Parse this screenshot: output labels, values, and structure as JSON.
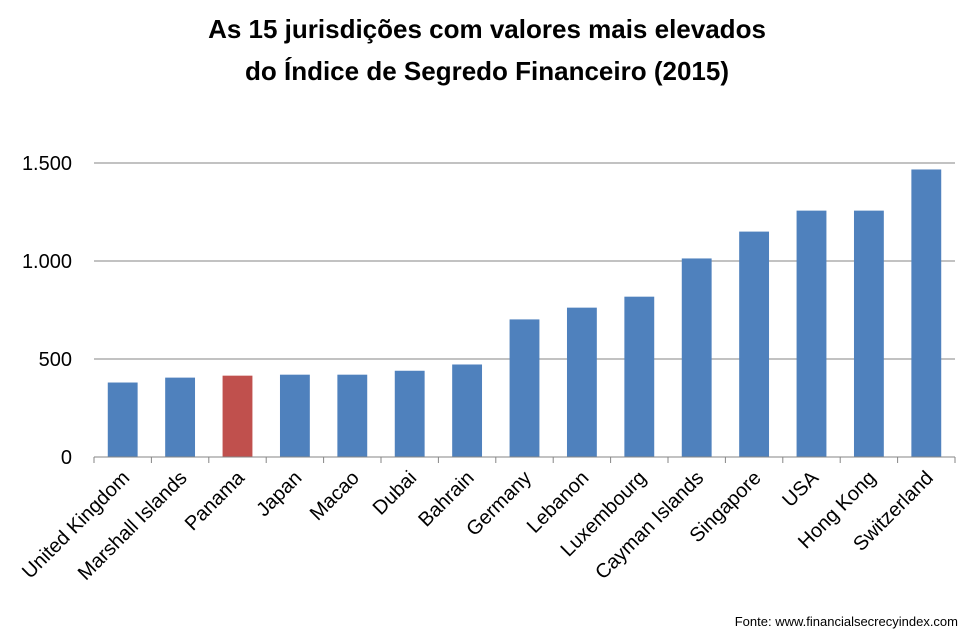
{
  "chart_data": {
    "type": "bar",
    "title_lines": [
      "As 15 jurisdições com valores mais elevados",
      "do Índice de Segredo Financeiro (2015)"
    ],
    "categories": [
      "United Kingdom",
      "Marshall Islands",
      "Panama",
      "Japan",
      "Macao",
      "Dubai",
      "Bahrain",
      "Germany",
      "Lebanon",
      "Luxembourg",
      "Cayman Islands",
      "Singapore",
      "USA",
      "Hong Kong",
      "Switzerland"
    ],
    "values": [
      380,
      405,
      415,
      420,
      420,
      440,
      472,
      702,
      762,
      818,
      1013,
      1150,
      1257,
      1257,
      1467
    ],
    "ylim": [
      0,
      1500
    ],
    "yticks": [
      0,
      500,
      1000,
      1500
    ],
    "ytick_labels": [
      "0",
      "500",
      "1.000",
      "1.500"
    ],
    "grid": true,
    "colors": {
      "default_bar": "#4F81BD",
      "highlight_bar": "#C0504D",
      "gridline": "#868686"
    },
    "highlight_category": "Panama",
    "source": "Fonte: www.financialsecrecyindex.com"
  }
}
